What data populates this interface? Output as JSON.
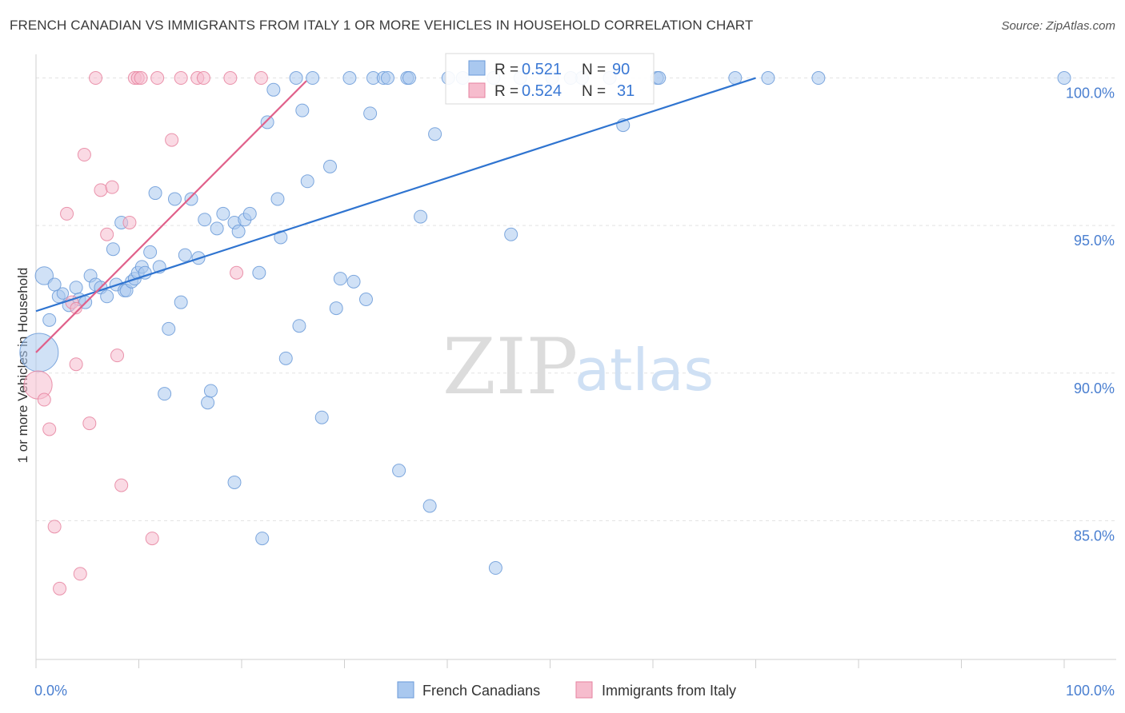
{
  "title": "FRENCH CANADIAN VS IMMIGRANTS FROM ITALY 1 OR MORE VEHICLES IN HOUSEHOLD CORRELATION CHART",
  "source": "Source: ZipAtlas.com",
  "watermark": {
    "zip": "ZIP",
    "atlas": "atlas"
  },
  "chart_data": {
    "type": "scatter",
    "ylabel": "1 or more Vehicles in Household",
    "xlim": [
      0,
      100
    ],
    "ylim": [
      80.3,
      100.8
    ],
    "x_tick_labels": [
      {
        "value": 0,
        "label": "0.0%"
      },
      {
        "value": 100,
        "label": "100.0%"
      }
    ],
    "x_minor_ticks": [
      10,
      20,
      30,
      40,
      50,
      60,
      70,
      80,
      90,
      100
    ],
    "y_ticks": [
      {
        "value": 100,
        "label": "100.0%"
      },
      {
        "value": 95,
        "label": "95.0%"
      },
      {
        "value": 90,
        "label": "90.0%"
      },
      {
        "value": 85,
        "label": "85.0%"
      }
    ],
    "grid": true,
    "legend_position": "bottom-center",
    "stats_box": [
      {
        "r_label": "R =",
        "r": "0.521",
        "n_label": "N =",
        "n": "90"
      },
      {
        "r_label": "R =",
        "r": "0.524",
        "n_label": "N =",
        "n": "31"
      }
    ],
    "series": [
      {
        "name": "French Canadians",
        "fill": "#a9c8ef",
        "stroke": "#6a9ad8",
        "trend_color": "#2f74d0",
        "trend": [
          [
            0,
            92.1
          ],
          [
            70,
            100.0
          ]
        ],
        "points": [
          [
            0.3,
            90.7,
            30
          ],
          [
            0.8,
            93.3,
            14
          ],
          [
            1.3,
            91.8,
            10
          ],
          [
            1.8,
            93.0,
            10
          ],
          [
            2.2,
            92.6,
            10
          ],
          [
            2.6,
            92.7,
            9
          ],
          [
            3.2,
            92.3,
            10
          ],
          [
            3.9,
            92.9,
            10
          ],
          [
            4.2,
            92.5,
            10
          ],
          [
            4.8,
            92.4,
            10
          ],
          [
            5.3,
            93.3,
            10
          ],
          [
            5.8,
            93.0,
            10
          ],
          [
            6.3,
            92.9,
            10
          ],
          [
            6.9,
            92.6,
            10
          ],
          [
            7.5,
            94.2,
            10
          ],
          [
            7.8,
            93.0,
            10
          ],
          [
            8.3,
            95.1,
            10
          ],
          [
            8.6,
            92.8,
            10
          ],
          [
            8.8,
            92.8,
            10
          ],
          [
            9.3,
            93.1,
            10
          ],
          [
            9.6,
            93.2,
            10
          ],
          [
            9.9,
            93.4,
            10
          ],
          [
            10.3,
            93.6,
            10
          ],
          [
            10.6,
            93.4,
            10
          ],
          [
            11.1,
            94.1,
            10
          ],
          [
            11.6,
            96.1,
            10
          ],
          [
            12.0,
            93.6,
            10
          ],
          [
            12.5,
            89.3,
            10
          ],
          [
            12.9,
            91.5,
            10
          ],
          [
            13.5,
            95.9,
            10
          ],
          [
            14.1,
            92.4,
            10
          ],
          [
            14.5,
            94.0,
            10
          ],
          [
            15.1,
            95.9,
            10
          ],
          [
            15.8,
            93.9,
            10
          ],
          [
            16.4,
            95.2,
            10
          ],
          [
            16.7,
            89.0,
            10
          ],
          [
            17.0,
            89.4,
            10
          ],
          [
            17.6,
            94.9,
            10
          ],
          [
            18.2,
            95.4,
            10
          ],
          [
            19.3,
            95.1,
            10
          ],
          [
            19.3,
            86.3,
            10
          ],
          [
            19.7,
            94.8,
            10
          ],
          [
            20.3,
            95.2,
            10
          ],
          [
            20.8,
            95.4,
            10
          ],
          [
            21.7,
            93.4,
            10
          ],
          [
            22.0,
            84.4,
            10
          ],
          [
            22.5,
            98.5,
            10
          ],
          [
            23.1,
            99.6,
            10
          ],
          [
            23.5,
            95.9,
            10
          ],
          [
            23.8,
            94.6,
            10
          ],
          [
            24.3,
            90.5,
            10
          ],
          [
            25.3,
            100.0,
            10
          ],
          [
            25.6,
            91.6,
            10
          ],
          [
            25.9,
            98.9,
            10
          ],
          [
            26.4,
            96.5,
            10
          ],
          [
            26.9,
            100.0,
            10
          ],
          [
            27.8,
            88.5,
            10
          ],
          [
            28.6,
            97.0,
            10
          ],
          [
            29.2,
            92.2,
            10
          ],
          [
            29.6,
            93.2,
            10
          ],
          [
            30.5,
            100.0,
            10
          ],
          [
            30.9,
            93.1,
            10
          ],
          [
            32.1,
            92.5,
            10
          ],
          [
            32.5,
            98.8,
            10
          ],
          [
            32.8,
            100.0,
            10
          ],
          [
            33.8,
            100.0,
            10
          ],
          [
            34.2,
            100.0,
            10
          ],
          [
            35.3,
            86.7,
            10
          ],
          [
            36.1,
            100.0,
            10
          ],
          [
            36.3,
            100.0,
            10
          ],
          [
            37.4,
            95.3,
            10
          ],
          [
            38.3,
            85.5,
            10
          ],
          [
            38.8,
            98.1,
            10
          ],
          [
            40.1,
            100.0,
            10
          ],
          [
            41.5,
            100.0,
            10
          ],
          [
            44.7,
            83.4,
            10
          ],
          [
            46.2,
            94.7,
            10
          ],
          [
            47.1,
            100.0,
            10
          ],
          [
            50.2,
            100.0,
            10
          ],
          [
            53.1,
            100.0,
            10
          ],
          [
            55.8,
            100.0,
            10
          ],
          [
            57.1,
            98.4,
            10
          ],
          [
            60.4,
            100.0,
            10
          ],
          [
            60.6,
            100.0,
            10
          ],
          [
            68.0,
            100.0,
            10
          ],
          [
            71.2,
            100.0,
            10
          ],
          [
            76.1,
            100.0,
            10
          ],
          [
            100.0,
            100.0,
            10
          ],
          [
            52.0,
            100.0,
            10
          ],
          [
            44.5,
            100.0,
            10
          ]
        ]
      },
      {
        "name": "Immigrants from Italy",
        "fill": "#f6bccd",
        "stroke": "#e6829f",
        "trend_color": "#e0608a",
        "trend": [
          [
            0,
            90.7
          ],
          [
            26.3,
            99.9
          ]
        ],
        "points": [
          [
            0.2,
            89.6,
            22
          ],
          [
            0.8,
            89.1,
            10
          ],
          [
            1.3,
            88.1,
            10
          ],
          [
            1.8,
            84.8,
            10
          ],
          [
            2.3,
            82.7,
            10
          ],
          [
            3.0,
            95.4,
            10
          ],
          [
            3.5,
            92.4,
            10
          ],
          [
            3.9,
            92.2,
            9
          ],
          [
            3.9,
            90.3,
            10
          ],
          [
            4.3,
            83.2,
            10
          ],
          [
            4.7,
            97.4,
            10
          ],
          [
            5.2,
            88.3,
            10
          ],
          [
            5.8,
            100.0,
            10
          ],
          [
            6.3,
            96.2,
            10
          ],
          [
            6.9,
            94.7,
            10
          ],
          [
            7.4,
            96.3,
            10
          ],
          [
            7.9,
            90.6,
            10
          ],
          [
            8.3,
            86.2,
            10
          ],
          [
            9.1,
            95.1,
            10
          ],
          [
            9.6,
            100.0,
            10
          ],
          [
            9.9,
            100.0,
            10
          ],
          [
            10.2,
            100.0,
            10
          ],
          [
            11.3,
            84.4,
            10
          ],
          [
            11.8,
            100.0,
            10
          ],
          [
            13.2,
            97.9,
            10
          ],
          [
            14.1,
            100.0,
            10
          ],
          [
            15.7,
            100.0,
            10
          ],
          [
            16.3,
            100.0,
            10
          ],
          [
            18.9,
            100.0,
            10
          ],
          [
            19.5,
            93.4,
            10
          ],
          [
            21.9,
            100.0,
            10
          ]
        ]
      }
    ]
  }
}
